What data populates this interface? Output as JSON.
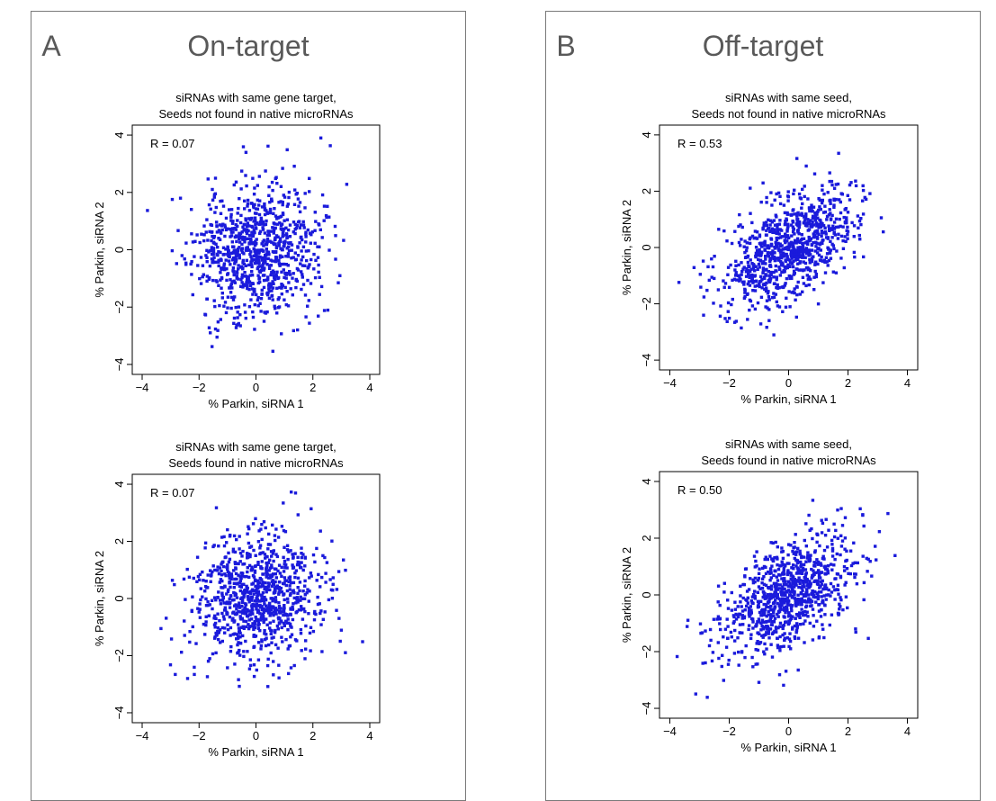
{
  "panels": [
    {
      "letter": "A",
      "title": "On-target"
    },
    {
      "letter": "B",
      "title": "Off-target"
    }
  ],
  "colors": {
    "points": "#1a1adb",
    "border": "#7a7a7a",
    "heading": "#595959"
  },
  "chart_data": [
    {
      "type": "scatter",
      "panel": "A",
      "title_lines": [
        "siRNAs with same gene target,",
        "Seeds not found in native microRNAs"
      ],
      "annotation": "R = 0.07",
      "xlabel": "% Parkin, siRNA 1",
      "ylabel": "% Parkin, siRNA 2",
      "xlim": [
        -4,
        4
      ],
      "ylim": [
        -4,
        4
      ],
      "xticks": [
        -4,
        -2,
        0,
        2,
        4
      ],
      "yticks": [
        -4,
        -2,
        0,
        2,
        4
      ],
      "tick_labels": [
        "−4",
        "−2",
        "0",
        "2",
        "4"
      ],
      "n_points": 900,
      "correlation": 0.07,
      "x_sd": 1.1,
      "y_sd": 1.15,
      "seed": 11
    },
    {
      "type": "scatter",
      "panel": "A",
      "title_lines": [
        "siRNAs with same gene target,",
        "Seeds found in native microRNAs"
      ],
      "annotation": "R = 0.07",
      "xlabel": "% Parkin, siRNA 1",
      "ylabel": "% Parkin, siRNA 2",
      "xlim": [
        -4,
        4
      ],
      "ylim": [
        -4,
        4
      ],
      "xticks": [
        -4,
        -2,
        0,
        2,
        4
      ],
      "yticks": [
        -4,
        -2,
        0,
        2,
        4
      ],
      "tick_labels": [
        "−4",
        "−2",
        "0",
        "2",
        "4"
      ],
      "n_points": 900,
      "correlation": 0.07,
      "x_sd": 1.1,
      "y_sd": 1.1,
      "seed": 23
    },
    {
      "type": "scatter",
      "panel": "B",
      "title_lines": [
        "siRNAs with same seed,",
        "Seeds not found in native microRNAs"
      ],
      "annotation": "R = 0.53",
      "xlabel": "% Parkin, siRNA 1",
      "ylabel": "% Parkin, siRNA 2",
      "xlim": [
        -4,
        4
      ],
      "ylim": [
        -4,
        4
      ],
      "xticks": [
        -4,
        -2,
        0,
        2,
        4
      ],
      "yticks": [
        -4,
        -2,
        0,
        2,
        4
      ],
      "tick_labels": [
        "−4",
        "−2",
        "0",
        "2",
        "4"
      ],
      "n_points": 900,
      "correlation": 0.53,
      "x_sd": 1.1,
      "y_sd": 1.05,
      "seed": 37
    },
    {
      "type": "scatter",
      "panel": "B",
      "title_lines": [
        "siRNAs with same seed,",
        "Seeds found in native microRNAs"
      ],
      "annotation": "R = 0.50",
      "xlabel": "% Parkin, siRNA 1",
      "ylabel": "% Parkin, siRNA 2",
      "xlim": [
        -4,
        4
      ],
      "ylim": [
        -4,
        4
      ],
      "xticks": [
        -4,
        -2,
        0,
        2,
        4
      ],
      "yticks": [
        -4,
        -2,
        0,
        2,
        4
      ],
      "tick_labels": [
        "−4",
        "−2",
        "0",
        "2",
        "4"
      ],
      "n_points": 900,
      "correlation": 0.5,
      "x_sd": 1.1,
      "y_sd": 1.05,
      "seed": 53
    }
  ]
}
